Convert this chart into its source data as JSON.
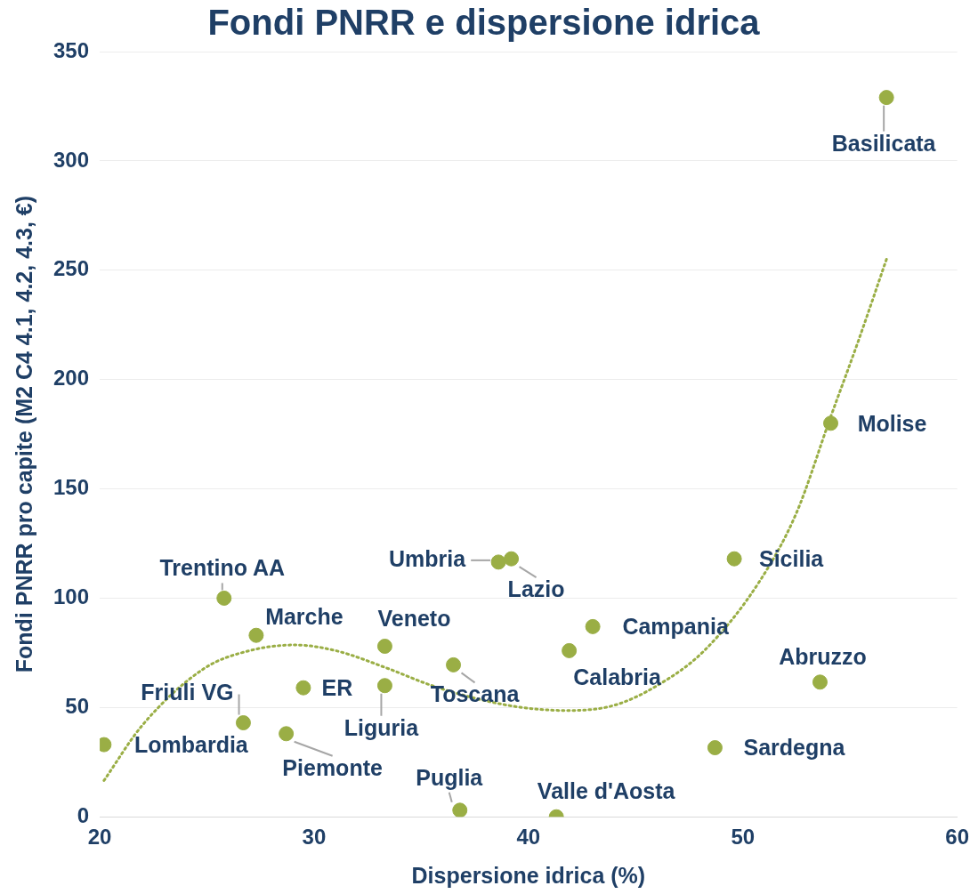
{
  "chart_data": {
    "type": "scatter",
    "title": "Fondi PNRR e dispersione idrica",
    "xlabel": "Dispersione idrica (%)",
    "ylabel": "Fondi PNRR pro capite (M2 C4 4.1, 4.2, 4.3, €)",
    "xlim": [
      20,
      60
    ],
    "xticks": [
      20,
      30,
      40,
      50,
      60
    ],
    "ylim": [
      0,
      350
    ],
    "yticks": [
      0,
      50,
      100,
      150,
      200,
      250,
      300,
      350
    ],
    "grid": "y",
    "legend": false,
    "series": [
      {
        "marker": "circle",
        "color": "#9aae45",
        "x": [
          20.2,
          26.7,
          25.8,
          27.3,
          28.7,
          29.5,
          33.3,
          33.3,
          36.5,
          36.8,
          38.6,
          39.2,
          41.3,
          41.9,
          43.0,
          48.7,
          49.6,
          53.6,
          54.1,
          56.7
        ],
        "values": [
          33,
          43,
          100,
          83,
          38,
          59,
          60,
          78,
          69.5,
          3,
          116.5,
          118,
          0,
          76,
          87,
          31.6,
          118,
          61.6,
          180,
          329
        ]
      },
      {
        "type": "line",
        "color": "#9aae45",
        "line_style": "dotted",
        "x": [
          20.2,
          22,
          24.9,
          27,
          29.1,
          31,
          33.4,
          35.5,
          37.6,
          39.7,
          41.8,
          44.0,
          46,
          48.2,
          50.8,
          52.5,
          54.1,
          55.4,
          56.7
        ],
        "values": [
          16.6,
          42,
          68,
          76,
          78.6,
          76,
          68,
          60,
          54,
          50,
          48.6,
          51,
          60,
          76,
          108,
          139,
          183,
          218,
          255
        ]
      }
    ],
    "annotations": [
      {
        "text": "Lombardia",
        "x": 20.2,
        "y": 33
      },
      {
        "text": "Friuli VG",
        "x": 26.7,
        "y": 43
      },
      {
        "text": "Trentino AA",
        "x": 25.8,
        "y": 100
      },
      {
        "text": "Marche",
        "x": 27.3,
        "y": 83
      },
      {
        "text": "Piemonte",
        "x": 28.7,
        "y": 38
      },
      {
        "text": "ER",
        "x": 29.5,
        "y": 59
      },
      {
        "text": "Liguria",
        "x": 33.3,
        "y": 60
      },
      {
        "text": "Veneto",
        "x": 33.3,
        "y": 78
      },
      {
        "text": "Toscana",
        "x": 36.5,
        "y": 69.5
      },
      {
        "text": "Puglia",
        "x": 36.8,
        "y": 3
      },
      {
        "text": "Umbria",
        "x": 38.6,
        "y": 116.5
      },
      {
        "text": "Lazio",
        "x": 39.2,
        "y": 118
      },
      {
        "text": "Valle d'Aosta",
        "x": 41.3,
        "y": 0
      },
      {
        "text": "Calabria",
        "x": 41.9,
        "y": 76
      },
      {
        "text": "Campania",
        "x": 43.0,
        "y": 87
      },
      {
        "text": "Sardegna",
        "x": 48.7,
        "y": 31.6
      },
      {
        "text": "Sicilia",
        "x": 49.6,
        "y": 118
      },
      {
        "text": "Abruzzo",
        "x": 53.6,
        "y": 61.6
      },
      {
        "text": "Molise",
        "x": 54.1,
        "y": 180
      },
      {
        "text": "Basilicata",
        "x": 56.7,
        "y": 329
      }
    ]
  }
}
